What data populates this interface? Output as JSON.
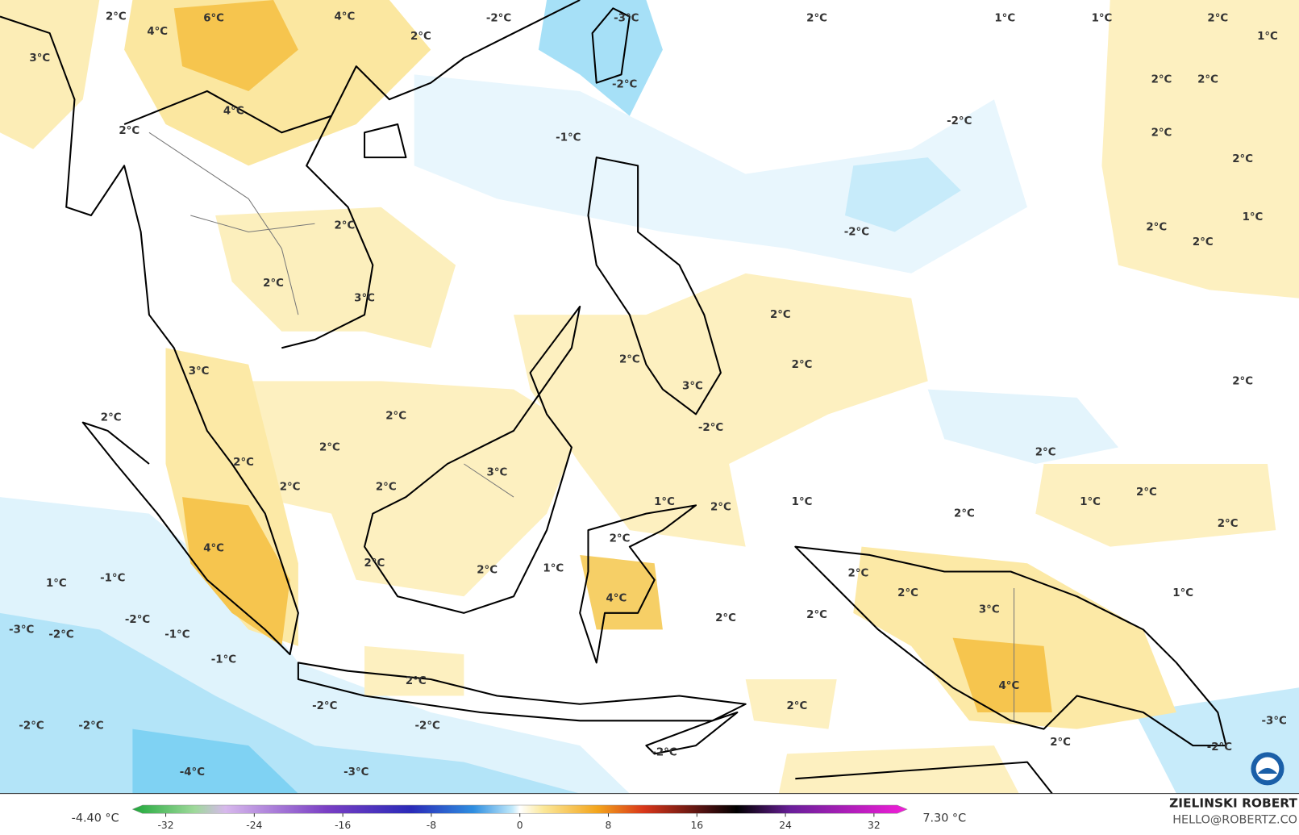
{
  "map": {
    "labels": [
      "2°C",
      "6°C",
      "4°C",
      "-2°C",
      "-3°C",
      "2°C",
      "1°C",
      "1°C",
      "2°C",
      "1°C",
      "4°C",
      "2°C",
      "3°C",
      "-2°C",
      "2°C",
      "2°C",
      "-2°C",
      "2°C",
      "2°C",
      "4°C",
      "-1°C",
      "2°C",
      "2°C",
      "-2°C",
      "2°C",
      "1°C",
      "2°C",
      "2°C",
      "3°C",
      "2°C",
      "2°C",
      "2°C",
      "3°C",
      "3°C",
      "2°C",
      "2°C",
      "2°C",
      "-2°C",
      "2°C",
      "2°C",
      "2°C",
      "3°C",
      "2°C",
      "2°C",
      "1°C",
      "2°C",
      "1°C",
      "2°C",
      "1°C",
      "2°C",
      "2°C",
      "2°C",
      "4°C",
      "2°C",
      "1°C",
      "-1°C",
      "2°C",
      "2°C",
      "1°C",
      "2°C",
      "1°C",
      "4°C",
      "3°C",
      "-2°C",
      "2°C",
      "2°C",
      "-3°C",
      "-2°C",
      "-1°C",
      "-1°C",
      "2°C",
      "4°C",
      "-2°C",
      "2°C",
      "-2°C",
      "-2°C",
      "-2°C",
      "-3°C",
      "2°C",
      "-2°C",
      "-2°C",
      "-4°C",
      "-3°C"
    ]
  },
  "legend": {
    "min_label": "-4.40 °C",
    "max_label": "7.30 °C",
    "scale": {
      "range": [
        -35,
        35
      ],
      "ticks": [
        -32,
        -24,
        -16,
        -8,
        0,
        8,
        16,
        24,
        32
      ]
    }
  },
  "credit": {
    "author": "ZIELINSKI ROBERT",
    "contact": "HELLO@ROBERTZ.CO"
  }
}
